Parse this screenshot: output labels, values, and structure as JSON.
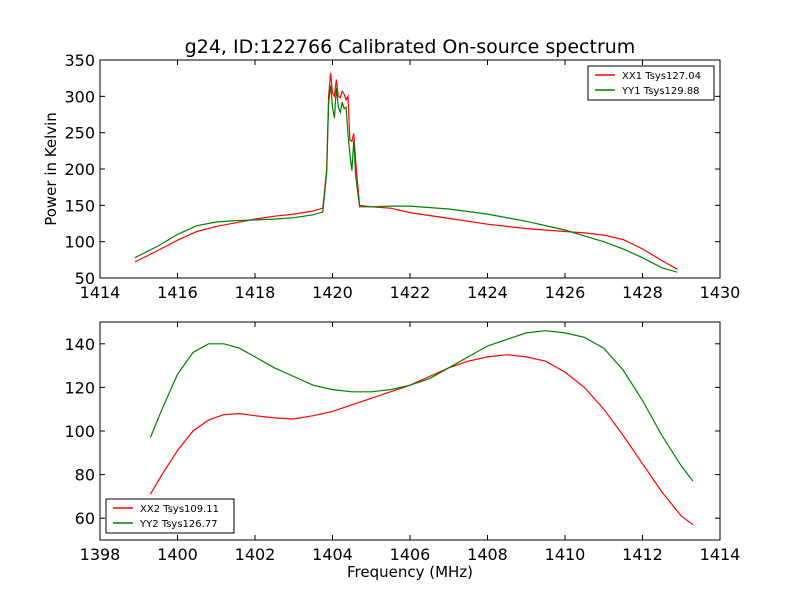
{
  "figure": {
    "title": "g24, ID:122766 Calibrated On-source spectrum"
  },
  "chart_data": [
    {
      "type": "line",
      "title": "g24, ID:122766 Calibrated On-source spectrum",
      "xlabel": "",
      "ylabel": "Power in Kelvin",
      "xlim": [
        1414,
        1430
      ],
      "ylim": [
        50,
        350
      ],
      "xticks": [
        1414,
        1416,
        1418,
        1420,
        1422,
        1424,
        1426,
        1428,
        1430
      ],
      "yticks": [
        50,
        100,
        150,
        200,
        250,
        300,
        350
      ],
      "grid": false,
      "legend": "top-right",
      "series": [
        {
          "name": "XX1 Tsys127.04",
          "color": "#ff0000",
          "x": [
            1414.9,
            1415.5,
            1416.0,
            1416.5,
            1417.0,
            1417.5,
            1418.0,
            1418.5,
            1419.0,
            1419.5,
            1419.75,
            1419.85,
            1419.9,
            1419.95,
            1420.0,
            1420.05,
            1420.1,
            1420.15,
            1420.2,
            1420.25,
            1420.3,
            1420.35,
            1420.4,
            1420.45,
            1420.5,
            1420.55,
            1420.6,
            1420.7,
            1421.0,
            1421.5,
            1422.0,
            1423.0,
            1424.0,
            1425.0,
            1426.0,
            1426.5,
            1427.0,
            1427.5,
            1428.0,
            1428.5,
            1428.9
          ],
          "y": [
            72,
            88,
            102,
            114,
            121,
            126,
            131,
            135,
            138,
            142,
            146,
            200,
            300,
            332,
            305,
            300,
            323,
            300,
            298,
            307,
            303,
            295,
            300,
            240,
            238,
            249,
            210,
            150,
            148,
            146,
            140,
            132,
            124,
            118,
            114,
            112,
            109,
            103,
            90,
            74,
            62
          ]
        },
        {
          "name": "YY1 Tsys129.88",
          "color": "#008000",
          "x": [
            1414.9,
            1415.5,
            1416.0,
            1416.5,
            1417.0,
            1417.5,
            1418.0,
            1418.5,
            1419.0,
            1419.5,
            1419.75,
            1419.85,
            1419.9,
            1419.95,
            1420.0,
            1420.05,
            1420.1,
            1420.15,
            1420.2,
            1420.25,
            1420.3,
            1420.35,
            1420.4,
            1420.45,
            1420.5,
            1420.55,
            1420.6,
            1420.7,
            1421.0,
            1421.5,
            1422.0,
            1423.0,
            1424.0,
            1425.0,
            1426.0,
            1426.5,
            1427.0,
            1427.5,
            1428.0,
            1428.5,
            1428.9
          ],
          "y": [
            78,
            94,
            110,
            122,
            127,
            129,
            130,
            131,
            133,
            137,
            141,
            195,
            290,
            315,
            285,
            270,
            312,
            285,
            278,
            292,
            283,
            285,
            248,
            220,
            198,
            240,
            190,
            148,
            148,
            149,
            149,
            145,
            138,
            128,
            116,
            108,
            100,
            90,
            78,
            64,
            58
          ]
        }
      ]
    },
    {
      "type": "line",
      "title": "",
      "xlabel": "Frequency (MHz)",
      "ylabel": "",
      "xlim": [
        1398,
        1414
      ],
      "ylim": [
        50,
        150
      ],
      "xticks": [
        1398,
        1400,
        1402,
        1404,
        1406,
        1408,
        1410,
        1412,
        1414
      ],
      "yticks": [
        60,
        80,
        100,
        120,
        140
      ],
      "grid": false,
      "legend": "bottom-left",
      "series": [
        {
          "name": "XX2 Tsys109.11",
          "color": "#ff0000",
          "x": [
            1399.3,
            1399.6,
            1400.0,
            1400.4,
            1400.8,
            1401.2,
            1401.6,
            1402.0,
            1402.5,
            1403.0,
            1403.5,
            1404.0,
            1404.5,
            1405.0,
            1405.5,
            1406.0,
            1406.5,
            1407.0,
            1407.5,
            1408.0,
            1408.5,
            1409.0,
            1409.5,
            1410.0,
            1410.5,
            1411.0,
            1411.5,
            1412.0,
            1412.5,
            1413.0,
            1413.3
          ],
          "y": [
            71,
            80,
            91,
            100,
            105,
            107.5,
            108,
            107,
            106,
            105.5,
            107,
            109,
            112,
            115,
            118,
            121,
            125,
            129,
            132,
            134,
            135,
            134,
            132,
            127,
            120,
            110,
            98,
            85,
            72,
            61,
            57
          ]
        },
        {
          "name": "YY2 Tsys126.77",
          "color": "#008000",
          "x": [
            1399.3,
            1399.6,
            1400.0,
            1400.4,
            1400.8,
            1401.2,
            1401.6,
            1402.0,
            1402.5,
            1403.0,
            1403.5,
            1404.0,
            1404.5,
            1405.0,
            1405.5,
            1406.0,
            1406.5,
            1407.0,
            1407.5,
            1408.0,
            1408.5,
            1409.0,
            1409.5,
            1410.0,
            1410.5,
            1411.0,
            1411.5,
            1412.0,
            1412.5,
            1413.0,
            1413.3
          ],
          "y": [
            97,
            110,
            126,
            136,
            140,
            140,
            138,
            134,
            129,
            125,
            121,
            119,
            118,
            118,
            119,
            121,
            124,
            129,
            134,
            139,
            142,
            145,
            146,
            145,
            143,
            138,
            128,
            114,
            98,
            84,
            77
          ]
        }
      ]
    }
  ]
}
